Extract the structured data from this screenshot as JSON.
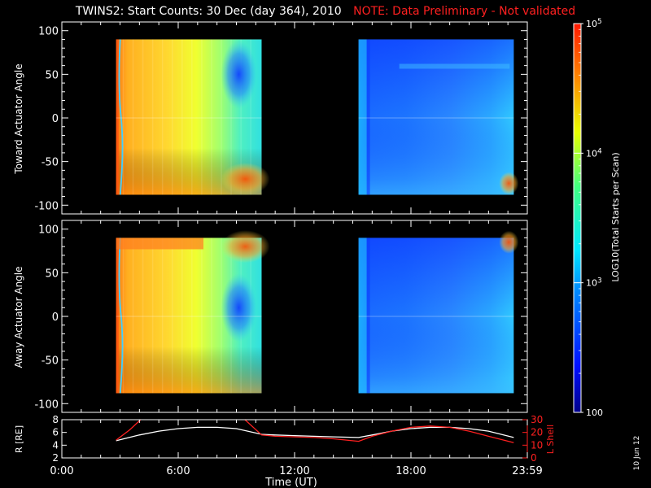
{
  "header": {
    "title": "TWINS2: Start Counts: 30 Dec (day 364), 2010",
    "note": "NOTE: Data Preliminary - Not validated"
  },
  "footer": {
    "date_stamp": "10 Jun 12"
  },
  "chart_data": [
    {
      "type": "heatmap",
      "ylabel": "Toward Actuator Angle",
      "ylim": [
        -110,
        110
      ],
      "yticks": [
        "100",
        "50",
        "0",
        "-50",
        "-100"
      ],
      "data_blocks_hours": [
        [
          2.8,
          10.3
        ],
        [
          15.3,
          23.3
        ]
      ],
      "angle_range": [
        -88,
        90
      ],
      "grid": false
    },
    {
      "type": "heatmap",
      "ylabel": "Away Actuator Angle",
      "ylim": [
        -110,
        110
      ],
      "yticks": [
        "100",
        "50",
        "0",
        "-50",
        "-100"
      ],
      "data_blocks_hours": [
        [
          2.8,
          10.3
        ],
        [
          15.3,
          23.3
        ]
      ],
      "angle_range": [
        -88,
        90
      ],
      "grid": false
    },
    {
      "type": "line",
      "ylabel": "R [RE]",
      "ylim": [
        2,
        8
      ],
      "yticks": [
        "2",
        "4",
        "6",
        "8"
      ],
      "y2label": "L Shell",
      "y2lim": [
        0,
        30
      ],
      "y2ticks": [
        "0",
        "10",
        "20",
        "30"
      ],
      "xlabel": "Time (UT)",
      "xticks": [
        "0:00",
        "6:00",
        "12:00",
        "18:00",
        "23:59"
      ],
      "xlim": [
        0,
        24
      ],
      "series": [
        {
          "axis": "left",
          "color": "#ffffff",
          "x": [
            2.8,
            4,
            5,
            6,
            7,
            8,
            9,
            10.3,
            11,
            12,
            13,
            14,
            15.3,
            16,
            17,
            18,
            19,
            20,
            21,
            22,
            23.3
          ],
          "y": [
            4.7,
            5.6,
            6.2,
            6.6,
            6.8,
            6.8,
            6.6,
            5.7,
            5.6,
            5.5,
            5.4,
            5.3,
            5.2,
            5.6,
            6.2,
            6.6,
            6.8,
            6.8,
            6.6,
            6.2,
            5.2
          ]
        },
        {
          "axis": "right",
          "color": "#ff2020",
          "x": [
            2.8,
            3.5,
            4.2,
            null,
            9.3,
            10.3,
            11,
            12,
            13,
            14,
            15.3,
            16,
            17,
            18,
            19,
            20,
            21,
            22,
            23.3
          ],
          "y": [
            14,
            22,
            32,
            null,
            32,
            18,
            17,
            16.5,
            16,
            15,
            13,
            17,
            21,
            24,
            25,
            24,
            21,
            17,
            12
          ]
        }
      ]
    },
    {
      "type": "colorbar",
      "label": "LOG10(Total Starts per Scan)",
      "scale": "log",
      "range": [
        100,
        100000
      ],
      "ticks": [
        {
          "value": 100,
          "label": "100"
        },
        {
          "value": 1000,
          "label": "10^3"
        },
        {
          "value": 10000,
          "label": "10^4"
        },
        {
          "value": 100000,
          "label": "10^5"
        }
      ]
    }
  ]
}
